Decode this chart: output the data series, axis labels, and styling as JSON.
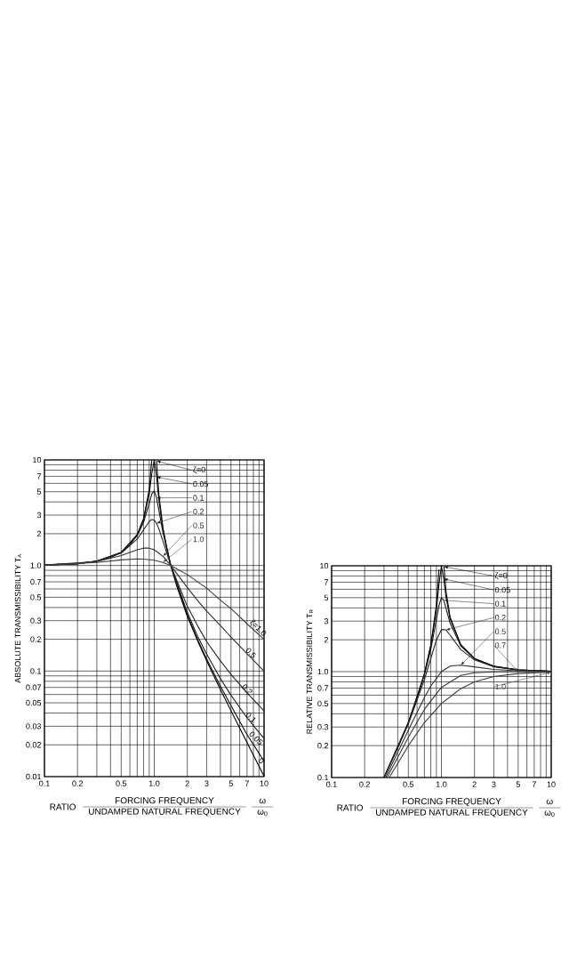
{
  "chart_data": [
    {
      "type": "line",
      "log": "xy",
      "grid": true,
      "legend": "top right",
      "ylabel": "ABSOLUTE TRANSMISSIBILITY T$_{A}$",
      "xlabel": "RATIO",
      "annotations": [
        "FORCING FREQUENCY",
        "UNDAMPED NATURAL FREQUENCY",
        "ω",
        "ω$_{0}$",
        {
          "text": "ζ=1.0",
          "x": 7,
          "y": 0.28
        },
        {
          "text": "0.5",
          "x": 6.5,
          "y": 0.155
        },
        {
          "text": "0.2",
          "x": 6,
          "y": 0.07
        },
        {
          "text": "0.1",
          "x": 6.5,
          "y": 0.038
        },
        {
          "text": "0.05",
          "x": 7,
          "y": 0.025
        },
        {
          "text": "0",
          "x": 8.5,
          "y": 0.014
        }
      ],
      "xlim": [
        0.1,
        10
      ],
      "ylim": [
        0.01,
        10
      ],
      "xticks": [
        0.1,
        0.2,
        {
          "value": 0.3,
          "label": null
        },
        {
          "value": 0.4,
          "label": null
        },
        0.5,
        {
          "value": 0.6,
          "label": null
        },
        {
          "value": 0.7,
          "label": null
        },
        {
          "value": 0.8,
          "label": null
        },
        {
          "value": 0.9,
          "label": null
        },
        {
          "value": 1,
          "label": "1.0"
        },
        2,
        3,
        {
          "value": 4,
          "label": null
        },
        5,
        {
          "value": 6,
          "label": null
        },
        7,
        {
          "value": 8,
          "label": null
        },
        {
          "value": 9,
          "label": null
        },
        10
      ],
      "yticks": [
        0.01,
        0.02,
        0.03,
        {
          "value": 0.04,
          "label": null
        },
        0.05,
        {
          "value": 0.06,
          "label": null
        },
        0.07,
        {
          "value": 0.08,
          "label": null
        },
        {
          "value": 0.09,
          "label": null
        },
        0.1,
        0.2,
        0.3,
        {
          "value": 0.4,
          "label": null
        },
        0.5,
        {
          "value": 0.6,
          "label": null
        },
        0.7,
        {
          "value": 0.8,
          "label": null
        },
        {
          "value": 0.9,
          "label": null
        },
        {
          "value": 1,
          "label": "1.0"
        },
        2,
        3,
        {
          "value": 4,
          "label": null
        },
        5,
        {
          "value": 6,
          "label": null
        },
        7,
        {
          "value": 8,
          "label": null
        },
        {
          "value": 9,
          "label": null
        },
        10
      ],
      "series": [
        {
          "name": "ζ=0",
          "color": "#000000",
          "x": [
            0.1,
            0.2,
            0.3,
            0.4,
            0.5,
            0.6,
            0.7,
            0.8,
            0.9,
            0.948,
            1.0,
            1.05,
            1.1,
            1.2,
            1.3,
            1.414,
            1.6,
            1.8,
            2,
            2.5,
            3,
            4,
            5,
            7,
            10
          ],
          "values": [
            1.01,
            1.04,
            1.1,
            1.19,
            1.33,
            1.56,
            1.96,
            2.78,
            5.26,
            9.9,
            null,
            9.76,
            4.76,
            2.27,
            1.45,
            1.0,
            0.64,
            0.45,
            0.33,
            0.19,
            0.125,
            0.067,
            0.042,
            0.021,
            0.0101
          ]
        },
        {
          "name": "0.05",
          "color": "#0c0c0c",
          "x": [
            0.1,
            0.2,
            0.3,
            0.5,
            0.7,
            0.8,
            0.9,
            0.95,
            1.0,
            1.05,
            1.1,
            1.2,
            1.414,
            2,
            2.5,
            3,
            4,
            5,
            7,
            10
          ],
          "values": [
            1.01,
            1.04,
            1.1,
            1.33,
            1.96,
            2.75,
            4.78,
            7.4,
            10,
            6.9,
            4.24,
            2.21,
            1.0,
            0.34,
            0.196,
            0.13,
            0.072,
            0.047,
            0.025,
            0.014
          ]
        },
        {
          "name": "0.1",
          "color": "#181818",
          "x": [
            0.1,
            0.2,
            0.3,
            0.5,
            0.7,
            0.8,
            0.9,
            0.95,
            1.0,
            1.05,
            1.1,
            1.2,
            1.414,
            2,
            2.5,
            3,
            4,
            5,
            7,
            10
          ],
          "values": [
            1.01,
            1.04,
            1.1,
            1.33,
            1.91,
            2.57,
            3.88,
            4.77,
            5.1,
            4.37,
            3.37,
            2.05,
            1.0,
            0.36,
            0.21,
            0.145,
            0.085,
            0.059,
            0.036,
            0.023
          ]
        },
        {
          "name": "0.2",
          "color": "#242424",
          "x": [
            0.1,
            0.2,
            0.3,
            0.5,
            0.7,
            0.8,
            0.9,
            0.95,
            1.0,
            1.05,
            1.1,
            1.2,
            1.414,
            2,
            2.5,
            3,
            4,
            5,
            7,
            10
          ],
          "values": [
            1.01,
            1.04,
            1.1,
            1.31,
            1.78,
            2.18,
            2.61,
            2.73,
            2.69,
            2.51,
            2.24,
            1.7,
            1.0,
            0.41,
            0.265,
            0.19,
            0.125,
            0.093,
            0.062,
            0.042
          ]
        },
        {
          "name": "0.5",
          "color": "#303030",
          "x": [
            0.1,
            0.3,
            0.5,
            0.7,
            0.8,
            0.9,
            1.0,
            1.2,
            1.414,
            2,
            2.5,
            3,
            4,
            5,
            7,
            10
          ],
          "values": [
            1.01,
            1.09,
            1.24,
            1.41,
            1.46,
            1.46,
            1.41,
            1.22,
            1.0,
            0.62,
            0.46,
            0.37,
            0.27,
            0.21,
            0.146,
            0.1
          ]
        },
        {
          "name": "1.0",
          "color": "#3c3c3c",
          "x": [
            0.1,
            0.3,
            0.5,
            0.7,
            0.8,
            1.0,
            1.2,
            1.414,
            2,
            3,
            4,
            5,
            7,
            10
          ],
          "values": [
            1.01,
            1.07,
            1.13,
            1.155,
            1.15,
            1.12,
            1.07,
            1.0,
            0.82,
            0.61,
            0.47,
            0.39,
            0.28,
            0.2
          ]
        }
      ]
    },
    {
      "type": "line",
      "log": "xy",
      "grid": true,
      "legend": "top right",
      "ylabel": "RELATIVE TRANSMISSIBILITY T$_{R}$",
      "xlabel": "RATIO",
      "annotations": [
        "FORCING FREQUENCY",
        "UNDAMPED NATURAL FREQUENCY",
        "ω",
        "ω$_{0}$"
      ],
      "xlim": [
        0.1,
        10
      ],
      "ylim": [
        0.1,
        10
      ],
      "xticks": [
        0.1,
        0.2,
        {
          "value": 0.3,
          "label": null
        },
        {
          "value": 0.4,
          "label": null
        },
        0.5,
        {
          "value": 0.6,
          "label": null
        },
        {
          "value": 0.7,
          "label": null
        },
        {
          "value": 0.8,
          "label": null
        },
        {
          "value": 0.9,
          "label": null
        },
        {
          "value": 1,
          "label": "1.0"
        },
        2,
        3,
        {
          "value": 4,
          "label": null
        },
        5,
        {
          "value": 6,
          "label": null
        },
        7,
        {
          "value": 8,
          "label": null
        },
        {
          "value": 9,
          "label": null
        },
        10
      ],
      "yticks": [
        0.1,
        0.2,
        0.3,
        {
          "value": 0.4,
          "label": null
        },
        0.5,
        {
          "value": 0.6,
          "label": null
        },
        0.7,
        {
          "value": 0.8,
          "label": null
        },
        {
          "value": 0.9,
          "label": null
        },
        {
          "value": 1,
          "label": "1.0"
        },
        2,
        3,
        {
          "value": 4,
          "label": null
        },
        5,
        {
          "value": 6,
          "label": null
        },
        7,
        {
          "value": 8,
          "label": null
        },
        {
          "value": 9,
          "label": null
        },
        10
      ],
      "series": [
        {
          "name": "ζ=0",
          "color": "#000000",
          "x": [
            0.3,
            0.4,
            0.5,
            0.6,
            0.7,
            0.8,
            0.9,
            0.95,
            1.0,
            1.055,
            1.1,
            1.2,
            1.5,
            2,
            3,
            5,
            10
          ],
          "values": [
            0.1,
            0.19,
            0.33,
            0.56,
            0.96,
            1.78,
            4.26,
            9.26,
            null,
            9.8,
            5.76,
            3.27,
            1.8,
            1.33,
            1.13,
            1.04,
            1.01
          ]
        },
        {
          "name": "0.05",
          "color": "#0c0c0c",
          "x": [
            0.3,
            0.5,
            0.7,
            0.8,
            0.9,
            0.95,
            1.0,
            1.05,
            1.1,
            1.2,
            1.5,
            2,
            3,
            5,
            10
          ],
          "values": [
            0.1,
            0.33,
            0.95,
            1.74,
            3.85,
            6.64,
            10,
            7.52,
            5.1,
            3.16,
            1.79,
            1.33,
            1.12,
            1.04,
            1.01
          ]
        },
        {
          "name": "0.1",
          "color": "#181818",
          "x": [
            0.3,
            0.5,
            0.7,
            0.8,
            0.9,
            0.95,
            1.0,
            1.05,
            1.1,
            1.2,
            1.5,
            2,
            3,
            5,
            10
          ],
          "values": [
            0.1,
            0.33,
            0.93,
            1.62,
            3.1,
            4.23,
            5.0,
            4.72,
            3.98,
            2.87,
            1.75,
            1.32,
            1.12,
            1.04,
            1.01
          ]
        },
        {
          "name": "0.2",
          "color": "#242424",
          "x": [
            0.3,
            0.5,
            0.7,
            0.8,
            0.9,
            1.0,
            1.1,
            1.2,
            1.5,
            2,
            3,
            5,
            10
          ],
          "values": [
            0.1,
            0.32,
            0.84,
            1.33,
            1.99,
            2.5,
            2.48,
            2.21,
            1.62,
            1.29,
            1.11,
            1.04,
            1.0
          ]
        },
        {
          "name": "0.5",
          "color": "#303030",
          "x": [
            0.31,
            0.5,
            0.7,
            0.8,
            1.0,
            1.2,
            1.5,
            2,
            3,
            5,
            10
          ],
          "values": [
            0.1,
            0.28,
            0.57,
            0.73,
            1.0,
            1.13,
            1.15,
            1.11,
            1.05,
            1.02,
            1.0
          ]
        },
        {
          "name": "0.7",
          "color": "#363636",
          "x": [
            0.32,
            0.5,
            0.7,
            1.0,
            1.5,
            2,
            3,
            5,
            10
          ],
          "values": [
            0.1,
            0.24,
            0.44,
            0.71,
            0.92,
            0.975,
            0.996,
            1.0,
            1.0
          ]
        },
        {
          "name": "1.0",
          "color": "#3c3c3c",
          "x": [
            0.335,
            0.5,
            0.7,
            1.0,
            1.5,
            2,
            3,
            5,
            10
          ],
          "values": [
            0.1,
            0.2,
            0.33,
            0.5,
            0.69,
            0.8,
            0.9,
            0.96,
            0.99
          ]
        }
      ]
    }
  ]
}
